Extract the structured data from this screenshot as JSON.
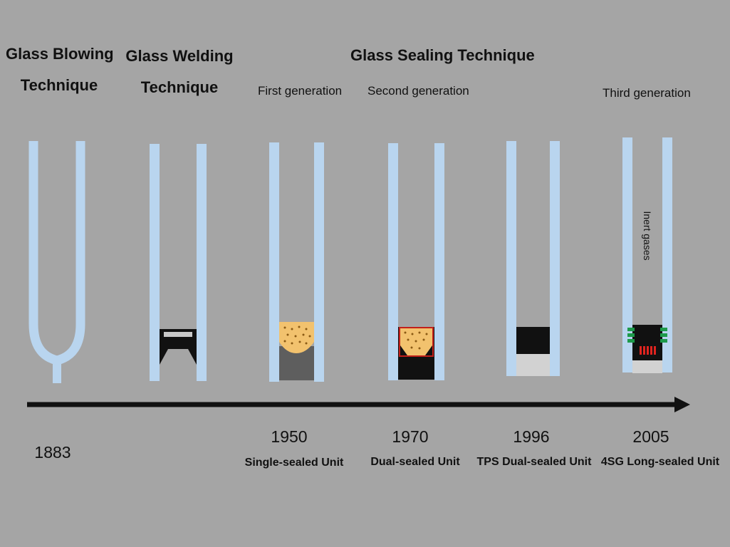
{
  "headers": {
    "blowing": [
      "Glass Blowing",
      "Technique"
    ],
    "welding": [
      "Glass Welding",
      "Technique"
    ],
    "sealing": "Glass Sealing Technique"
  },
  "generations": [
    "First generation",
    "Second generation",
    "Third generation"
  ],
  "inert_label": "Inert gases",
  "units": [
    {
      "year": "1883",
      "label": ""
    },
    {
      "year": "1950",
      "label": "Single-sealed Unit"
    },
    {
      "year": "1970",
      "label": "Dual-sealed Unit"
    },
    {
      "year": "1996",
      "label": "TPS Dual-sealed Unit"
    },
    {
      "year": "2005",
      "label": "4SG Long-sealed Unit"
    }
  ],
  "colors": {
    "background": "#a5a5a5",
    "glass": "#b9d5ef",
    "desiccant": "#f2c26e",
    "sealant": "#111111",
    "secondary_seal": "#5e5e5e",
    "primary_seal_edge": "#c2201a",
    "green_clips": "#1d9a4a",
    "red_pins": "#e0241f",
    "spacer_bottom": "#d2d2d2"
  }
}
